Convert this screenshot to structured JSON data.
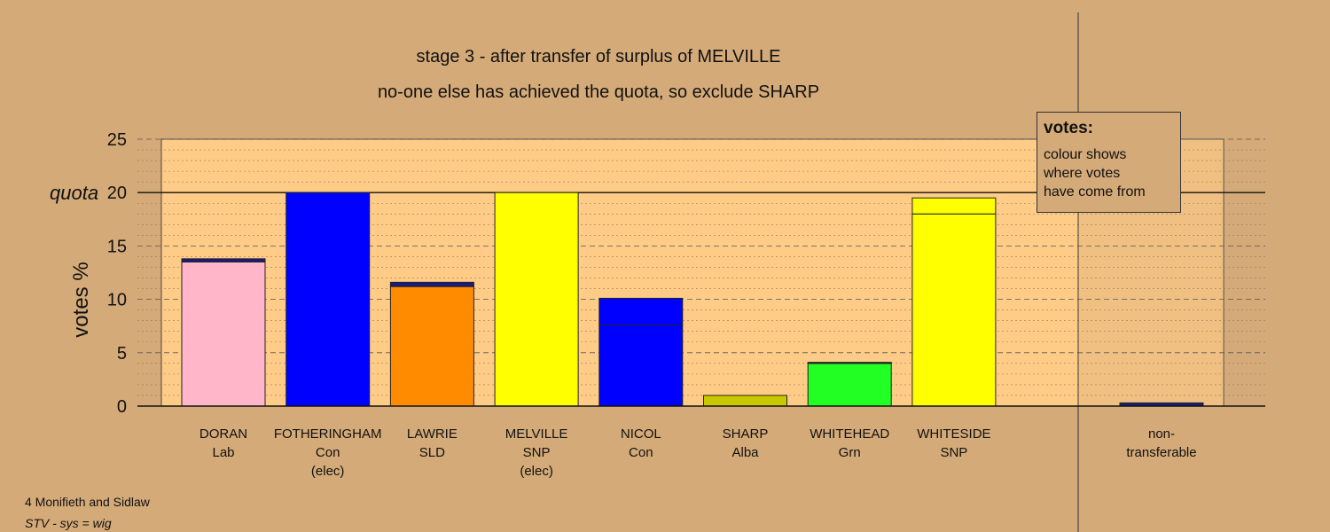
{
  "chart_data": {
    "type": "bar",
    "title": "stage 3 - after transfer of surplus of MELVILLE",
    "subtitle": "no-one else has achieved the quota, so exclude SHARP",
    "ylabel": "votes %",
    "ylim": [
      0,
      25
    ],
    "yticks": [
      "0",
      "5",
      "10",
      "15",
      "quota 20",
      "25"
    ],
    "quota": 20,
    "quota_label": "quota",
    "candidates": [
      {
        "name": "DORAN",
        "party": "Lab",
        "status": "",
        "segments": [
          {
            "value": 13.5,
            "color": "#ffb6c8"
          },
          {
            "value": 0.3,
            "color": "#1a1a80"
          }
        ]
      },
      {
        "name": "FOTHERINGHAM",
        "party": "Con",
        "status": "(elec)",
        "segments": [
          {
            "value": 20.0,
            "color": "#0000ff"
          }
        ]
      },
      {
        "name": "LAWRIE",
        "party": "SLD",
        "status": "",
        "segments": [
          {
            "value": 11.2,
            "color": "#ff8c00"
          },
          {
            "value": 0.4,
            "color": "#1a1a80"
          }
        ]
      },
      {
        "name": "MELVILLE",
        "party": "SNP",
        "status": "(elec)",
        "segments": [
          {
            "value": 20.0,
            "color": "#ffff00"
          }
        ]
      },
      {
        "name": "NICOL",
        "party": "Con",
        "status": "",
        "segments": [
          {
            "value": 7.6,
            "color": "#0000ff"
          },
          {
            "value": 2.5,
            "color": "#0000ff"
          }
        ]
      },
      {
        "name": "SHARP",
        "party": "Alba",
        "status": "",
        "segments": [
          {
            "value": 1.0,
            "color": "#c8c800"
          }
        ]
      },
      {
        "name": "WHITEHEAD",
        "party": "Grn",
        "status": "",
        "segments": [
          {
            "value": 4.0,
            "color": "#22ff22"
          },
          {
            "value": 0.1,
            "color": "#1a1a80"
          }
        ]
      },
      {
        "name": "WHITESIDE",
        "party": "SNP",
        "status": "",
        "segments": [
          {
            "value": 18.0,
            "color": "#ffff00"
          },
          {
            "value": 1.5,
            "color": "#ffff00"
          }
        ]
      }
    ],
    "nontransferable": {
      "label1": "non-",
      "label2": "transferable",
      "value": 0.3,
      "color": "#1a1a80"
    }
  },
  "legend": {
    "heading": "votes:",
    "line1": "colour shows",
    "line2": "where votes",
    "line3": "have come from"
  },
  "footer": {
    "line1": "4 Monifieth and Sidlaw",
    "line2": "STV - sys = wig"
  },
  "colors": {
    "background": "#d4aa78",
    "plot_area": "#ffcc88"
  }
}
